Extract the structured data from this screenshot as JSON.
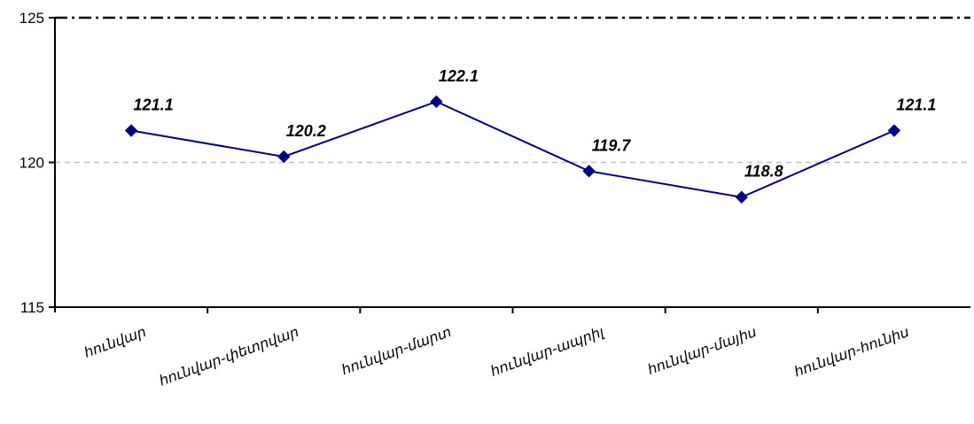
{
  "chart_data": {
    "type": "line",
    "title": "",
    "xlabel": "",
    "ylabel": "",
    "categories": [
      "հունվար",
      "հունվար-փետրվար",
      "հունվար-մարտ",
      "հունվար-ապրիլ",
      "հունվար-մայիս",
      "հունվար-հունիս"
    ],
    "series": [
      {
        "values": [
          121.1,
          120.2,
          122.1,
          119.7,
          118.8,
          121.1
        ]
      }
    ],
    "data_labels": [
      "121.1",
      "120.2",
      "122.1",
      "119.7",
      "118.8",
      "121.1"
    ],
    "ylim": [
      115,
      125
    ],
    "yticks": [
      115,
      120,
      125
    ],
    "ytick_labels": [
      "115",
      "120",
      "125"
    ],
    "grid": true,
    "legend": "none",
    "colors": {
      "line": "#000080",
      "marker": "#000080",
      "gridline": "#c0c0c0",
      "top_border": "#000000",
      "axis": "#000000"
    }
  }
}
